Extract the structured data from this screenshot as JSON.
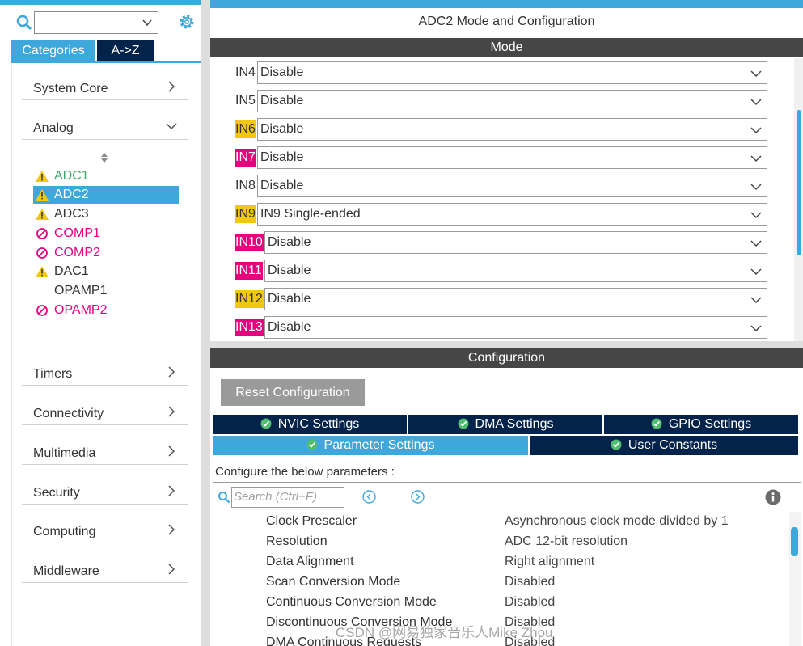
{
  "left_panel": {
    "search": {
      "value": ""
    },
    "tabs": [
      "Categories",
      "A->Z"
    ],
    "categories": [
      {
        "label": "System Core",
        "expanded": false
      },
      {
        "label": "Analog",
        "expanded": true
      },
      {
        "label": "Timers",
        "expanded": false
      },
      {
        "label": "Connectivity",
        "expanded": false
      },
      {
        "label": "Multimedia",
        "expanded": false
      },
      {
        "label": "Security",
        "expanded": false
      },
      {
        "label": "Computing",
        "expanded": false
      },
      {
        "label": "Middleware",
        "expanded": false
      }
    ],
    "analog_items": [
      {
        "label": "ADC1",
        "status": "warning",
        "color": "green",
        "selected": false
      },
      {
        "label": "ADC2",
        "status": "warning",
        "color": "white",
        "selected": true
      },
      {
        "label": "ADC3",
        "status": "warning",
        "color": "dark",
        "selected": false
      },
      {
        "label": "COMP1",
        "status": "blocked",
        "color": "pink",
        "selected": false
      },
      {
        "label": "COMP2",
        "status": "blocked",
        "color": "pink",
        "selected": false
      },
      {
        "label": "DAC1",
        "status": "warning",
        "color": "dark",
        "selected": false
      },
      {
        "label": "OPAMP1",
        "status": "none",
        "color": "dark",
        "selected": false
      },
      {
        "label": "OPAMP2",
        "status": "blocked",
        "color": "pink",
        "selected": false
      }
    ]
  },
  "right_panel": {
    "title": "ADC2 Mode and Configuration",
    "mode_header": "Mode",
    "mode_rows": [
      {
        "pin": "IN4",
        "highlight": "none",
        "value": "Disable"
      },
      {
        "pin": "IN5",
        "highlight": "none",
        "value": "Disable"
      },
      {
        "pin": "IN6",
        "highlight": "yellow",
        "value": "Disable"
      },
      {
        "pin": "IN7",
        "highlight": "magenta",
        "value": "Disable"
      },
      {
        "pin": "IN8",
        "highlight": "none",
        "value": "Disable"
      },
      {
        "pin": "IN9",
        "highlight": "yellow",
        "value": "IN9 Single-ended"
      },
      {
        "pin": "IN10",
        "highlight": "magenta",
        "value": "Disable"
      },
      {
        "pin": "IN11",
        "highlight": "magenta",
        "value": "Disable"
      },
      {
        "pin": "IN12",
        "highlight": "yellow",
        "value": "Disable"
      },
      {
        "pin": "IN13",
        "highlight": "magenta",
        "value": "Disable"
      }
    ],
    "config_header": "Configuration",
    "reset_button": "Reset Configuration",
    "settings_tabs": [
      {
        "label": "NVIC Settings",
        "active": false
      },
      {
        "label": "DMA Settings",
        "active": false
      },
      {
        "label": "GPIO Settings",
        "active": false
      },
      {
        "label": "Parameter Settings",
        "active": true
      },
      {
        "label": "User Constants",
        "active": false
      }
    ],
    "configure_label": "Configure the below parameters :",
    "param_search_placeholder": "Search (Ctrl+F)",
    "parameters": [
      {
        "name": "Clock Prescaler",
        "value": "Asynchronous clock mode divided by 1"
      },
      {
        "name": "Resolution",
        "value": "ADC 12-bit resolution"
      },
      {
        "name": "Data Alignment",
        "value": "Right alignment"
      },
      {
        "name": "Scan Conversion Mode",
        "value": "Disabled"
      },
      {
        "name": "Continuous Conversion Mode",
        "value": "Disabled"
      },
      {
        "name": "Discontinuous Conversion Mode",
        "value": "Disabled"
      },
      {
        "name": "DMA Continuous Requests",
        "value": "Disabled"
      }
    ]
  },
  "watermark": "CSDN @网易独家音乐人Mike Zhou",
  "colors": {
    "accent": "#3ea7dc",
    "navy": "#03234b",
    "section_bar": "#464646",
    "warning_yellow": "#f2c80f",
    "magenta": "#e6007e",
    "ok_green": "#3aa867"
  }
}
